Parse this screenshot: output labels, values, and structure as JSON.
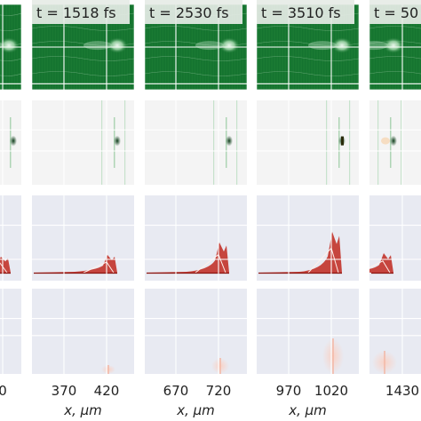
{
  "chart_data": {
    "type": "heatmap",
    "layout": {
      "rows": 4,
      "columns": 5
    },
    "columns": [
      {
        "time_label": "",
        "x_ticks": [
          "0"
        ],
        "x_axis_label": ""
      },
      {
        "time_label": "t = 1518 fs",
        "x_ticks": [
          "370",
          "420"
        ],
        "x_axis_label": "x, μm"
      },
      {
        "time_label": "t = 2530 fs",
        "x_ticks": [
          "670",
          "720"
        ],
        "x_axis_label": "x, μm"
      },
      {
        "time_label": "t = 3510 fs",
        "x_ticks": [
          "970",
          "1020"
        ],
        "x_axis_label": "x, μm"
      },
      {
        "time_label": "t = 50",
        "x_ticks": [
          "1430"
        ],
        "x_axis_label": ""
      }
    ],
    "row_colormaps": [
      "Greens (dense field)",
      "Greens (sparse field)",
      "Reds on grey",
      "Reds on grey (faint)"
    ],
    "row_backgrounds": [
      "#1a7a33",
      "#f4f4f4",
      "#e8eaf2",
      "#e8eaf2"
    ],
    "grid": true,
    "colors": {
      "green_dark": "#0d6a2a",
      "green_light": "#cfead3",
      "red": "#c0281e",
      "red_light": "#f3b9a8",
      "axis_panel": "#e8eaf2"
    }
  }
}
